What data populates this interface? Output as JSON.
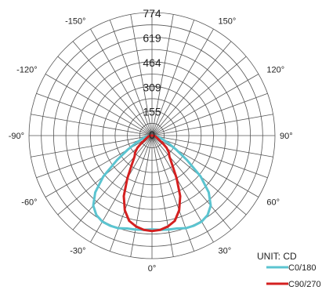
{
  "chart_data": {
    "type": "polar",
    "unit_label": "UNIT: CD",
    "radial_ticks": [
      "774",
      "619",
      "464",
      "309",
      "155",
      "0"
    ],
    "radial_values": [
      774,
      619,
      464,
      309,
      155,
      0
    ],
    "rmax": 774,
    "angle_ticks": [
      {
        "label": "0°",
        "angle": 0
      },
      {
        "label": "30°",
        "angle": 30
      },
      {
        "label": "60°",
        "angle": 60
      },
      {
        "label": "90°",
        "angle": 90
      },
      {
        "label": "120°",
        "angle": 120
      },
      {
        "label": "150°",
        "angle": 150
      },
      {
        "label": "-150°",
        "angle": -150
      },
      {
        "label": "-120°",
        "angle": -120
      },
      {
        "label": "-90°",
        "angle": -90
      },
      {
        "label": "-60°",
        "angle": -60
      },
      {
        "label": "-30°",
        "angle": -30
      }
    ],
    "grid": true,
    "legend_position": "bottom-right",
    "series": [
      {
        "name": "C0/180",
        "color": "#5BC4D0",
        "points": [
          [
            0,
            590
          ],
          [
            5,
            595
          ],
          [
            10,
            600
          ],
          [
            15,
            605
          ],
          [
            20,
            620
          ],
          [
            25,
            625
          ],
          [
            30,
            625
          ],
          [
            35,
            610
          ],
          [
            40,
            575
          ],
          [
            45,
            505
          ],
          [
            50,
            400
          ],
          [
            55,
            270
          ],
          [
            60,
            175
          ],
          [
            65,
            115
          ],
          [
            70,
            75
          ],
          [
            75,
            48
          ],
          [
            80,
            30
          ],
          [
            85,
            20
          ],
          [
            90,
            12
          ],
          [
            95,
            5
          ],
          [
            100,
            0
          ]
        ]
      },
      {
        "name": "C90/270",
        "color": "#D42020",
        "points": [
          [
            0,
            600
          ],
          [
            5,
            595
          ],
          [
            10,
            580
          ],
          [
            15,
            555
          ],
          [
            20,
            500
          ],
          [
            25,
            420
          ],
          [
            30,
            310
          ],
          [
            35,
            220
          ],
          [
            40,
            170
          ],
          [
            45,
            150
          ],
          [
            50,
            120
          ],
          [
            55,
            80
          ],
          [
            60,
            50
          ],
          [
            65,
            38
          ],
          [
            70,
            30
          ],
          [
            75,
            25
          ],
          [
            80,
            20
          ],
          [
            85,
            14
          ],
          [
            90,
            8
          ],
          [
            95,
            3
          ],
          [
            100,
            0
          ]
        ]
      }
    ]
  }
}
